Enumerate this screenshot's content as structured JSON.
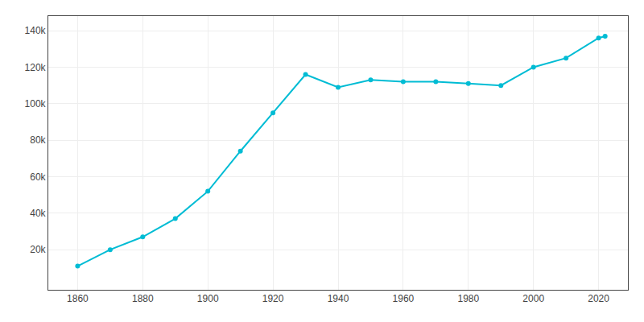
{
  "chart_data": {
    "type": "line",
    "x": [
      1860,
      1870,
      1880,
      1890,
      1900,
      1910,
      1920,
      1930,
      1940,
      1950,
      1960,
      1970,
      1980,
      1990,
      2000,
      2010,
      2020,
      2022
    ],
    "values": [
      11000,
      20000,
      27000,
      37000,
      52000,
      74000,
      95000,
      116000,
      109000,
      113000,
      112000,
      112000,
      111000,
      110000,
      120000,
      125000,
      136000,
      137000
    ],
    "color": "#00BCD4",
    "marker": "circle",
    "xlim": [
      1851,
      2029
    ],
    "ylim": [
      -2000,
      148000
    ],
    "xticks": [
      1860,
      1880,
      1900,
      1920,
      1940,
      1960,
      1980,
      2000,
      2020
    ],
    "yticks": [
      {
        "value": 20000,
        "label": "20k"
      },
      {
        "value": 40000,
        "label": "40k"
      },
      {
        "value": 60000,
        "label": "60k"
      },
      {
        "value": 80000,
        "label": "80k"
      },
      {
        "value": 100000,
        "label": "100k"
      },
      {
        "value": 120000,
        "label": "120k"
      },
      {
        "value": 140000,
        "label": "140k"
      }
    ],
    "grid": true
  }
}
